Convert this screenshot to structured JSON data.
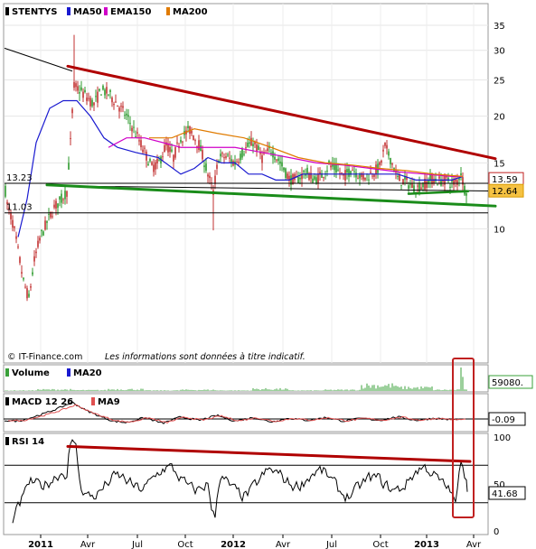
{
  "chart_data": [
    {
      "type": "candlestick",
      "panel": "price",
      "ticker": "STENTYS",
      "legend": [
        {
          "name": "STENTYS",
          "color": "#000000"
        },
        {
          "name": "MA50",
          "color": "#1a1ad0"
        },
        {
          "name": "EMA150",
          "color": "#d000c8"
        },
        {
          "name": "MA200",
          "color": "#e07b00"
        }
      ],
      "y_scale": "log",
      "y_ticks": [
        "35",
        "30",
        "25",
        "20",
        "15",
        "10"
      ],
      "ylim": [
        5,
        37
      ],
      "key_levels": [
        {
          "label": "13.23",
          "value": 13.23
        },
        {
          "label": "11.03",
          "value": 11.03
        }
      ],
      "price_tags": [
        {
          "label": "13.59",
          "value": 13.59,
          "kind": "red"
        },
        {
          "label": "12.64",
          "value": 12.64,
          "kind": "last"
        }
      ],
      "series": [
        {
          "name": "MA50",
          "t": [
            20,
            30,
            40,
            55,
            70,
            85,
            100,
            115,
            130,
            150,
            175,
            200,
            215,
            230,
            245,
            260,
            275,
            290,
            305,
            320,
            335,
            350,
            365,
            380,
            400,
            420,
            440,
            460,
            480,
            500,
            512
          ],
          "values": [
            9.5,
            12,
            17,
            21,
            22,
            22,
            20,
            17.5,
            16.5,
            16,
            15.5,
            14,
            14.5,
            15.5,
            15,
            15,
            14,
            14,
            13.5,
            13.5,
            14,
            14,
            14,
            14,
            14,
            14,
            14,
            13.5,
            13.5,
            13.5,
            13.8
          ]
        },
        {
          "name": "EMA150",
          "t": [
            120,
            140,
            160,
            180,
            200,
            230,
            260,
            290,
            320,
            350,
            380,
            410,
            440,
            470,
            500,
            512
          ],
          "values": [
            16.5,
            17.5,
            17.5,
            17,
            16.5,
            16.5,
            16.5,
            16,
            15.5,
            15,
            14.8,
            14.5,
            14.2,
            14,
            13.8,
            13.8
          ]
        },
        {
          "name": "MA200",
          "t": [
            165,
            190,
            215,
            240,
            270,
            300,
            330,
            360,
            390,
            420,
            450,
            480,
            512
          ],
          "values": [
            17.5,
            17.5,
            18.5,
            18,
            17.5,
            16.5,
            15.5,
            15,
            14.8,
            14.5,
            14.3,
            14,
            13.8
          ]
        }
      ],
      "trendlines": [
        {
          "name": "resistance",
          "color": "#b00000",
          "from": {
            "t": 75,
            "v": 27.2
          },
          "to": {
            "t": 548,
            "v": 15.4
          }
        },
        {
          "name": "support",
          "color": "#1a8c1a",
          "from": {
            "t": 52,
            "v": 13.1
          },
          "to": {
            "t": 548,
            "v": 11.5
          }
        },
        {
          "name": "short-support",
          "color": "#1a8c1a",
          "from": {
            "t": 452,
            "v": 12.4
          },
          "to": {
            "t": 518,
            "v": 12.6
          }
        }
      ]
    },
    {
      "type": "bar",
      "panel": "volume",
      "legend": [
        {
          "name": "Volume",
          "color": "#3aa03a"
        },
        {
          "name": "MA20",
          "color": "#1a1ad0"
        }
      ],
      "last_value_tag": "59080.",
      "values_profile": [
        0.1,
        0.25,
        0.15,
        0.3,
        0.1,
        0.2,
        0.1,
        0.35,
        0.1,
        0.2,
        1.0,
        0.6,
        0.2
      ]
    },
    {
      "type": "line",
      "panel": "macd",
      "legend": [
        {
          "name": "MACD 12 26",
          "color": "#000000"
        },
        {
          "name": "MA9",
          "color": "#e05050"
        }
      ],
      "last_value_tag": "-0.09",
      "series": [
        {
          "name": "MACD 12 26",
          "t": [
            5,
            20,
            35,
            50,
            65,
            80,
            95,
            110,
            125,
            140,
            160,
            180,
            200,
            220,
            240,
            260,
            280,
            300,
            320,
            340,
            360,
            380,
            400,
            420,
            440,
            460,
            480,
            500,
            512
          ],
          "values": [
            -0.2,
            -0.3,
            0.2,
            0.8,
            1.5,
            2.3,
            1.2,
            0.4,
            -0.3,
            -0.5,
            0.2,
            -0.6,
            0.3,
            -0.2,
            0.5,
            -0.3,
            0.2,
            -0.4,
            0.1,
            -0.2,
            0.2,
            -0.3,
            0.1,
            -0.2,
            0.3,
            -0.2,
            0.1,
            -0.1,
            -0.09
          ]
        }
      ],
      "ylim": [
        -2,
        3
      ]
    },
    {
      "type": "line",
      "panel": "rsi",
      "legend": [
        {
          "name": "RSI 14",
          "color": "#000000"
        }
      ],
      "y_ticks": [
        "100",
        "50",
        "0"
      ],
      "ylim": [
        0,
        100
      ],
      "levels": [
        70,
        30
      ],
      "last_value_tag": "41.68",
      "trendline": {
        "color": "#b00000",
        "from": {
          "t": 75,
          "v": 90
        },
        "to": {
          "t": 520,
          "v": 74
        }
      }
    }
  ],
  "x_axis": {
    "ticks": [
      {
        "label": "2011",
        "t": 45,
        "bold": true
      },
      {
        "label": "Avr",
        "t": 97,
        "bold": false
      },
      {
        "label": "Jul",
        "t": 152,
        "bold": false
      },
      {
        "label": "Oct",
        "t": 205,
        "bold": false
      },
      {
        "label": "2012",
        "t": 258,
        "bold": true
      },
      {
        "label": "Avr",
        "t": 313,
        "bold": false
      },
      {
        "label": "Jul",
        "t": 367,
        "bold": false
      },
      {
        "label": "Oct",
        "t": 421,
        "bold": false
      },
      {
        "label": "2013",
        "t": 472,
        "bold": true
      },
      {
        "label": "Avr",
        "t": 524,
        "bold": false
      }
    ]
  },
  "credit": {
    "source": "© IT-Finance.com",
    "disclaimer": "Les informations sont données à titre indicatif."
  },
  "highlight_box": {
    "color": "#c02020"
  }
}
